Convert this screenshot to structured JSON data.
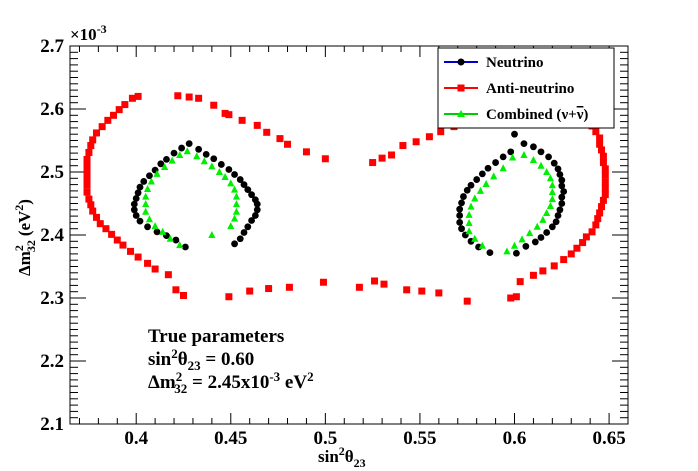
{
  "chart_data": {
    "type": "scatter",
    "title": "",
    "xlabel": "sin²θ23",
    "xlabel_parts": {
      "base": "sin",
      "sup": "2",
      "sym": "θ",
      "sub": "23"
    },
    "ylabel": "Δm²32 (eV²)",
    "ylabel_parts": {
      "base": "Δm",
      "sup": "2",
      "sub": "32",
      "unit": "(eV",
      "unit_sup": "2",
      "unit_close": ")"
    },
    "xlim": [
      0.365,
      0.66
    ],
    "ylim": [
      2.1,
      2.7
    ],
    "y_exponent": "×10",
    "y_exponent_sup": "-3",
    "x_ticks": [
      0.4,
      0.45,
      0.5,
      0.55,
      0.6,
      0.65
    ],
    "x_tick_labels": [
      "0.4",
      "0.45",
      "0.5",
      "0.55",
      "0.6",
      "0.65"
    ],
    "y_ticks": [
      2.1,
      2.2,
      2.3,
      2.4,
      2.5,
      2.6,
      2.7
    ],
    "y_tick_labels": [
      "2.1",
      "2.2",
      "2.3",
      "2.4",
      "2.5",
      "2.6",
      "2.7"
    ],
    "legend_position": "top-right",
    "series": [
      {
        "name": "Neutrino",
        "color": "#000000",
        "line_color": "#0000cc",
        "marker": "circle",
        "points": [
          [
            0.426,
            2.381
          ],
          [
            0.421,
            2.392
          ],
          [
            0.416,
            2.399
          ],
          [
            0.411,
            2.405
          ],
          [
            0.406,
            2.413
          ],
          [
            0.402,
            2.422
          ],
          [
            0.4,
            2.431
          ],
          [
            0.399,
            2.44
          ],
          [
            0.399,
            2.449
          ],
          [
            0.4,
            2.458
          ],
          [
            0.401,
            2.467
          ],
          [
            0.402,
            2.476
          ],
          [
            0.404,
            2.485
          ],
          [
            0.407,
            2.494
          ],
          [
            0.41,
            2.503
          ],
          [
            0.413,
            2.513
          ],
          [
            0.416,
            2.52
          ],
          [
            0.42,
            2.53
          ],
          [
            0.424,
            2.538
          ],
          [
            0.428,
            2.545
          ],
          [
            0.433,
            2.536
          ],
          [
            0.437,
            2.528
          ],
          [
            0.441,
            2.521
          ],
          [
            0.445,
            2.512
          ],
          [
            0.449,
            2.504
          ],
          [
            0.452,
            2.496
          ],
          [
            0.455,
            2.488
          ],
          [
            0.457,
            2.48
          ],
          [
            0.459,
            2.472
          ],
          [
            0.461,
            2.464
          ],
          [
            0.463,
            2.456
          ],
          [
            0.464,
            2.449
          ],
          [
            0.464,
            2.44
          ],
          [
            0.463,
            2.431
          ],
          [
            0.461,
            2.423
          ],
          [
            0.459,
            2.413
          ],
          [
            0.457,
            2.404
          ],
          [
            0.455,
            2.394
          ],
          [
            0.452,
            2.386
          ],
          [
            0.587,
            2.372
          ],
          [
            0.581,
            2.381
          ],
          [
            0.577,
            2.39
          ],
          [
            0.574,
            2.4
          ],
          [
            0.572,
            2.41
          ],
          [
            0.571,
            2.42
          ],
          [
            0.571,
            2.431
          ],
          [
            0.571,
            2.441
          ],
          [
            0.572,
            2.451
          ],
          [
            0.573,
            2.461
          ],
          [
            0.575,
            2.471
          ],
          [
            0.577,
            2.479
          ],
          [
            0.58,
            2.488
          ],
          [
            0.583,
            2.497
          ],
          [
            0.586,
            2.506
          ],
          [
            0.59,
            2.515
          ],
          [
            0.594,
            2.524
          ],
          [
            0.598,
            2.532
          ],
          [
            0.6,
            2.56
          ],
          [
            0.605,
            2.545
          ],
          [
            0.61,
            2.54
          ],
          [
            0.614,
            2.532
          ],
          [
            0.618,
            2.524
          ],
          [
            0.621,
            2.514
          ],
          [
            0.623,
            2.505
          ],
          [
            0.624,
            2.496
          ],
          [
            0.625,
            2.487
          ],
          [
            0.625,
            2.478
          ],
          [
            0.626,
            2.469
          ],
          [
            0.625,
            2.46
          ],
          [
            0.625,
            2.45
          ],
          [
            0.624,
            2.44
          ],
          [
            0.623,
            2.431
          ],
          [
            0.622,
            2.421
          ],
          [
            0.62,
            2.413
          ],
          [
            0.617,
            2.404
          ],
          [
            0.614,
            2.396
          ],
          [
            0.611,
            2.389
          ],
          [
            0.606,
            2.382
          ],
          [
            0.601,
            2.371
          ]
        ]
      },
      {
        "name": "Anti-neutrino",
        "color": "#ff0000",
        "line_color": "#ff0000",
        "marker": "square",
        "points": [
          [
            0.401,
            2.62
          ],
          [
            0.398,
            2.617
          ],
          [
            0.394,
            2.607
          ],
          [
            0.391,
            2.599
          ],
          [
            0.388,
            2.59
          ],
          [
            0.385,
            2.582
          ],
          [
            0.382,
            2.572
          ],
          [
            0.379,
            2.562
          ],
          [
            0.377,
            2.551
          ],
          [
            0.376,
            2.542
          ],
          [
            0.375,
            2.531
          ],
          [
            0.374,
            2.52
          ],
          [
            0.374,
            2.51
          ],
          [
            0.374,
            2.5
          ],
          [
            0.374,
            2.489
          ],
          [
            0.374,
            2.479
          ],
          [
            0.374,
            2.468
          ],
          [
            0.375,
            2.457
          ],
          [
            0.376,
            2.448
          ],
          [
            0.377,
            2.438
          ],
          [
            0.379,
            2.428
          ],
          [
            0.381,
            2.418
          ],
          [
            0.384,
            2.41
          ],
          [
            0.387,
            2.401
          ],
          [
            0.39,
            2.392
          ],
          [
            0.393,
            2.384
          ],
          [
            0.397,
            2.374
          ],
          [
            0.401,
            2.365
          ],
          [
            0.406,
            2.355
          ],
          [
            0.41,
            2.346
          ],
          [
            0.417,
            2.337
          ],
          [
            0.421,
            2.313
          ],
          [
            0.425,
            2.304
          ],
          [
            0.449,
            2.302
          ],
          [
            0.46,
            2.311
          ],
          [
            0.47,
            2.315
          ],
          [
            0.481,
            2.317
          ],
          [
            0.499,
            2.325
          ],
          [
            0.518,
            2.317
          ],
          [
            0.422,
            2.621
          ],
          [
            0.428,
            2.619
          ],
          [
            0.433,
            2.617
          ],
          [
            0.441,
            2.606
          ],
          [
            0.447,
            2.593
          ],
          [
            0.449,
            2.591
          ],
          [
            0.456,
            2.582
          ],
          [
            0.464,
            2.574
          ],
          [
            0.469,
            2.563
          ],
          [
            0.476,
            2.553
          ],
          [
            0.48,
            2.544
          ],
          [
            0.49,
            2.532
          ],
          [
            0.5,
            2.521
          ],
          [
            0.525,
            2.515
          ],
          [
            0.53,
            2.522
          ],
          [
            0.535,
            2.527
          ],
          [
            0.541,
            2.542
          ],
          [
            0.548,
            2.548
          ],
          [
            0.555,
            2.556
          ],
          [
            0.561,
            2.564
          ],
          [
            0.568,
            2.572
          ],
          [
            0.575,
            2.58
          ],
          [
            0.582,
            2.589
          ],
          [
            0.589,
            2.598
          ],
          [
            0.598,
            2.61
          ],
          [
            0.603,
            2.617
          ],
          [
            0.611,
            2.617
          ],
          [
            0.615,
            2.618
          ],
          [
            0.622,
            2.61
          ],
          [
            0.627,
            2.602
          ],
          [
            0.633,
            2.593
          ],
          [
            0.638,
            2.584
          ],
          [
            0.641,
            2.573
          ],
          [
            0.643,
            2.564
          ],
          [
            0.645,
            2.554
          ],
          [
            0.645,
            2.544
          ],
          [
            0.646,
            2.535
          ],
          [
            0.647,
            2.525
          ],
          [
            0.647,
            2.515
          ],
          [
            0.648,
            2.505
          ],
          [
            0.648,
            2.495
          ],
          [
            0.648,
            2.484
          ],
          [
            0.648,
            2.474
          ],
          [
            0.648,
            2.464
          ],
          [
            0.647,
            2.455
          ],
          [
            0.646,
            2.445
          ],
          [
            0.645,
            2.435
          ],
          [
            0.644,
            2.426
          ],
          [
            0.643,
            2.416
          ],
          [
            0.641,
            2.405
          ],
          [
            0.638,
            2.397
          ],
          [
            0.636,
            2.388
          ],
          [
            0.633,
            2.379
          ],
          [
            0.63,
            2.37
          ],
          [
            0.626,
            2.361
          ],
          [
            0.621,
            2.351
          ],
          [
            0.615,
            2.343
          ],
          [
            0.61,
            2.336
          ],
          [
            0.603,
            2.326
          ],
          [
            0.601,
            2.302
          ],
          [
            0.598,
            2.3
          ],
          [
            0.575,
            2.295
          ],
          [
            0.56,
            2.308
          ],
          [
            0.551,
            2.311
          ],
          [
            0.543,
            2.313
          ],
          [
            0.531,
            2.322
          ],
          [
            0.526,
            2.327
          ]
        ]
      },
      {
        "name": "Combined (ν+ν̄)",
        "color": "#00cc00",
        "line_color": "#00cc00",
        "marker": "triangle",
        "points": [
          [
            0.423,
            2.384
          ],
          [
            0.418,
            2.394
          ],
          [
            0.414,
            2.405
          ],
          [
            0.41,
            2.414
          ],
          [
            0.407,
            2.425
          ],
          [
            0.405,
            2.437
          ],
          [
            0.405,
            2.449
          ],
          [
            0.405,
            2.461
          ],
          [
            0.406,
            2.473
          ],
          [
            0.408,
            2.485
          ],
          [
            0.411,
            2.497
          ],
          [
            0.415,
            2.508
          ],
          [
            0.419,
            2.518
          ],
          [
            0.423,
            2.527
          ],
          [
            0.427,
            2.533
          ],
          [
            0.432,
            2.525
          ],
          [
            0.436,
            2.517
          ],
          [
            0.44,
            2.509
          ],
          [
            0.444,
            2.5
          ],
          [
            0.447,
            2.492
          ],
          [
            0.45,
            2.482
          ],
          [
            0.452,
            2.472
          ],
          [
            0.453,
            2.461
          ],
          [
            0.453,
            2.449
          ],
          [
            0.453,
            2.437
          ],
          [
            0.452,
            2.426
          ],
          [
            0.45,
            2.414
          ],
          [
            0.44,
            2.4
          ],
          [
            0.583,
            2.383
          ],
          [
            0.579,
            2.394
          ],
          [
            0.576,
            2.406
          ],
          [
            0.576,
            2.419
          ],
          [
            0.576,
            2.432
          ],
          [
            0.577,
            2.445
          ],
          [
            0.579,
            2.458
          ],
          [
            0.582,
            2.47
          ],
          [
            0.585,
            2.481
          ],
          [
            0.589,
            2.493
          ],
          [
            0.594,
            2.506
          ],
          [
            0.599,
            2.523
          ],
          [
            0.605,
            2.527
          ],
          [
            0.61,
            2.519
          ],
          [
            0.614,
            2.51
          ],
          [
            0.617,
            2.5
          ],
          [
            0.619,
            2.49
          ],
          [
            0.62,
            2.479
          ],
          [
            0.62,
            2.468
          ],
          [
            0.62,
            2.457
          ],
          [
            0.619,
            2.446
          ],
          [
            0.617,
            2.435
          ],
          [
            0.615,
            2.424
          ],
          [
            0.612,
            2.413
          ],
          [
            0.608,
            2.403
          ],
          [
            0.604,
            2.393
          ],
          [
            0.6,
            2.383
          ],
          [
            0.596,
            2.374
          ]
        ]
      }
    ],
    "annotation": {
      "line1": "True parameters",
      "line2_base": "sin",
      "line2_sup": "2",
      "line2_sym": "θ",
      "line2_sub": "23",
      "line2_value": " = 0.60",
      "line3_base": "Δm",
      "line3_sup": "2",
      "line3_sub": "32",
      "line3_value": " = 2.45x10",
      "line3_exp": "-3",
      "line3_unit": " eV",
      "line3_unit_sup": "2"
    },
    "legend": [
      {
        "label": "Neutrino"
      },
      {
        "label": "Anti-neutrino"
      },
      {
        "label_base": "Combined (",
        "label_nu": "ν+",
        "label_nubar": "ν",
        "label_close": ")"
      }
    ]
  }
}
